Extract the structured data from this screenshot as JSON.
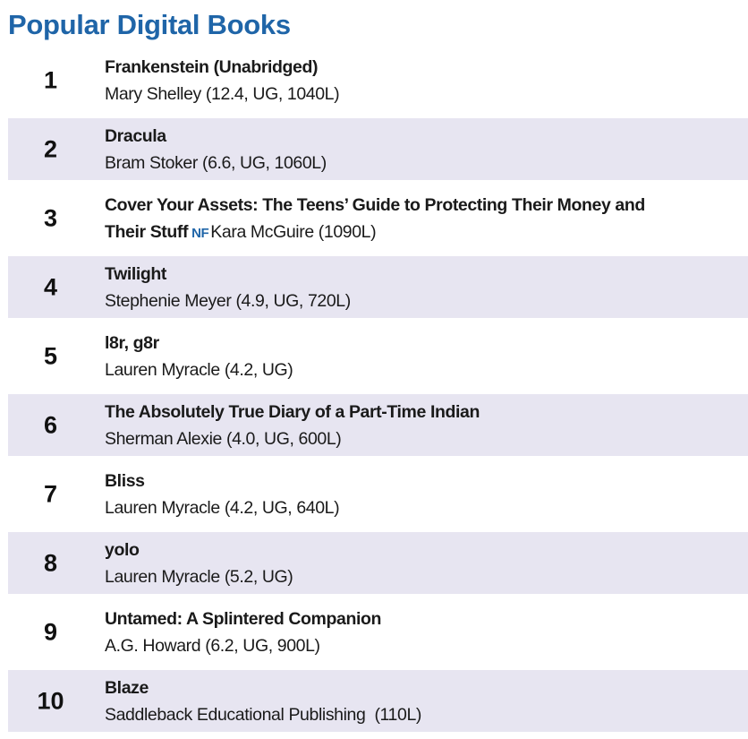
{
  "header": {
    "title": "Popular Digital Books"
  },
  "nf_label": "NF",
  "colors": {
    "title_blue": "#1f65a8",
    "row_shade": "#e7e5f1"
  },
  "books": [
    {
      "rank": "1",
      "title": "Frankenstein (Unabridged)",
      "author": "Mary Shelley (12.4, UG, 1040L)"
    },
    {
      "rank": "2",
      "title": "Dracula",
      "author": "Bram Stoker (6.6, UG, 1060L)"
    },
    {
      "rank": "3",
      "title_line1": "Cover Your Assets: The Teens’ Guide to Protecting Their Money and",
      "title_line2": "Their Stuff",
      "author": "Kara McGuire (1090L)"
    },
    {
      "rank": "4",
      "title": "Twilight",
      "author": "Stephenie Meyer (4.9, UG, 720L)"
    },
    {
      "rank": "5",
      "title": "l8r, g8r",
      "author": "Lauren Myracle (4.2, UG)"
    },
    {
      "rank": "6",
      "title": "The Absolutely True Diary of a Part-Time Indian",
      "author": "Sherman Alexie (4.0, UG, 600L)"
    },
    {
      "rank": "7",
      "title": "Bliss",
      "author": "Lauren Myracle (4.2, UG, 640L)"
    },
    {
      "rank": "8",
      "title": "yolo",
      "author": "Lauren Myracle (5.2, UG)"
    },
    {
      "rank": "9",
      "title": "Untamed: A Splintered Companion",
      "author": "A.G. Howard (6.2, UG, 900L)"
    },
    {
      "rank": "10",
      "title": "Blaze",
      "author": "Saddleback Educational Publishing  (110L)"
    }
  ]
}
